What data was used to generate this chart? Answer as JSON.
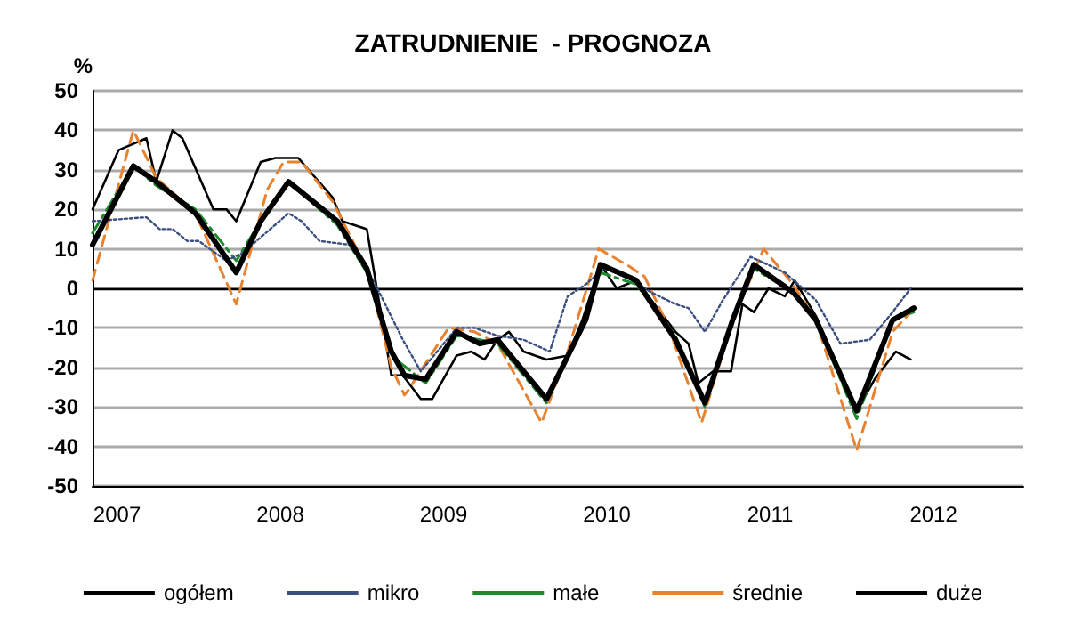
{
  "chart_data": {
    "type": "line",
    "title": "ZATRUDNIENIE  - PROGNOZA",
    "ylabel": "%",
    "xlim": [
      2006.85,
      2012.55
    ],
    "xticks": [
      2007,
      2008,
      2009,
      2010,
      2011,
      2012
    ],
    "ylim": [
      -50,
      50
    ],
    "yticks": [
      -50,
      -40,
      -30,
      -20,
      -10,
      0,
      10,
      20,
      30,
      40,
      50
    ],
    "grid": "y",
    "legend": "bottom",
    "marker": "none",
    "ref_lines": [
      {
        "axis": "y",
        "value": 0,
        "color": "#000000"
      }
    ],
    "series": [
      {
        "name": "ogółem",
        "color": "#000000",
        "line_style": "solid",
        "x": [
          2006.85,
          2007.1,
          2007.24,
          2007.48,
          2007.73,
          2007.88,
          2008.05,
          2008.35,
          2008.53,
          2008.68,
          2008.76,
          2008.89,
          2009.08,
          2009.22,
          2009.33,
          2009.63,
          2009.87,
          2009.96,
          2010.18,
          2010.42,
          2010.6,
          2010.77,
          2010.9,
          2011.14,
          2011.28,
          2011.53,
          2011.75,
          2011.88
        ],
        "values": [
          11,
          31,
          27,
          19,
          4,
          17,
          27,
          17,
          5,
          -16,
          -22,
          -23,
          -11,
          -14,
          -13,
          -28,
          -8,
          6,
          2,
          -13,
          -29,
          -8,
          6,
          -1,
          -8,
          -31,
          -8,
          -5
        ]
      },
      {
        "name": "mikro",
        "color": "#3b4f7f",
        "line_style": "dotted",
        "x": [
          2006.85,
          2007.18,
          2007.26,
          2007.34,
          2007.43,
          2007.5,
          2007.67,
          2007.77,
          2008.05,
          2008.13,
          2008.24,
          2008.43,
          2008.57,
          2008.75,
          2008.86,
          2009.08,
          2009.19,
          2009.33,
          2009.49,
          2009.65,
          2009.76,
          2009.87,
          2009.98,
          2010.12,
          2010.27,
          2010.42,
          2010.5,
          2010.6,
          2010.71,
          2010.88,
          2011.09,
          2011.28,
          2011.43,
          2011.61,
          2011.75,
          2011.86
        ],
        "values": [
          17,
          18,
          15,
          15,
          12,
          12,
          7,
          9,
          19,
          17,
          12,
          11,
          2,
          -13,
          -21,
          -10,
          -10,
          -12,
          -13,
          -16,
          -2,
          1,
          5,
          3,
          -1,
          -4,
          -5,
          -11,
          -3,
          8,
          4,
          -3,
          -14,
          -13,
          -6,
          0
        ]
      },
      {
        "name": "małe",
        "color": "#1e8a2e",
        "line_style": "dashdot",
        "x": [
          2006.85,
          2007.1,
          2007.24,
          2007.48,
          2007.73,
          2007.88,
          2008.05,
          2008.35,
          2008.53,
          2008.68,
          2008.89,
          2009.08,
          2009.22,
          2009.33,
          2009.63,
          2009.87,
          2009.96,
          2010.18,
          2010.42,
          2010.6,
          2010.77,
          2010.9,
          2011.14,
          2011.28,
          2011.53,
          2011.75,
          2011.88
        ],
        "values": [
          14,
          31,
          26,
          20,
          7,
          17,
          27,
          16,
          4,
          -17,
          -24,
          -12,
          -13,
          -14,
          -29,
          -8,
          4,
          1,
          -12,
          -30,
          -8,
          5,
          -1,
          -8,
          -33,
          -8,
          -6
        ]
      },
      {
        "name": "średnie",
        "color": "#e8822e",
        "line_style": "dashed",
        "x": [
          2006.85,
          2007.1,
          2007.24,
          2007.48,
          2007.73,
          2007.92,
          2008.02,
          2008.13,
          2008.32,
          2008.53,
          2008.68,
          2008.76,
          2008.78,
          2009.03,
          2009.19,
          2009.33,
          2009.6,
          2009.76,
          2009.95,
          2010.12,
          2010.23,
          2010.38,
          2010.58,
          2010.77,
          2010.96,
          2011.14,
          2011.28,
          2011.53,
          2011.75,
          2011.86
        ],
        "values": [
          2,
          40,
          28,
          19,
          -4,
          25,
          32,
          32,
          22,
          5,
          -20,
          -27,
          -26,
          -10,
          -11,
          -14,
          -34,
          -16,
          10,
          6,
          3,
          -10,
          -34,
          -8,
          10,
          1,
          -8,
          -41,
          -11,
          -6
        ]
      },
      {
        "name": "duże",
        "color": "#000000",
        "line_style": "solid",
        "x": [
          2006.85,
          2007.01,
          2007.18,
          2007.24,
          2007.34,
          2007.4,
          2007.59,
          2007.67,
          2007.73,
          2007.88,
          2007.97,
          2008.11,
          2008.32,
          2008.38,
          2008.53,
          2008.68,
          2008.75,
          2008.86,
          2008.93,
          2009.08,
          2009.17,
          2009.25,
          2009.33,
          2009.4,
          2009.49,
          2009.63,
          2009.76,
          2009.85,
          2009.96,
          2010.06,
          2010.18,
          2010.42,
          2010.5,
          2010.56,
          2010.65,
          2010.76,
          2010.83,
          2010.9,
          2010.99,
          2011.09,
          2011.15,
          2011.28,
          2011.53,
          2011.64,
          2011.77,
          2011.86
        ],
        "values": [
          20,
          35,
          38,
          27,
          40,
          38,
          20,
          20,
          17,
          32,
          33,
          33,
          23,
          17,
          15,
          -22,
          -22,
          -28,
          -28,
          -17,
          -16,
          -18,
          -13,
          -11,
          -16,
          -18,
          -17,
          -8,
          6,
          0,
          2,
          -11,
          -14,
          -24,
          -21,
          -21,
          -4,
          -6,
          0,
          -2,
          2,
          -7,
          -31,
          -23,
          -16,
          -18
        ]
      }
    ]
  }
}
